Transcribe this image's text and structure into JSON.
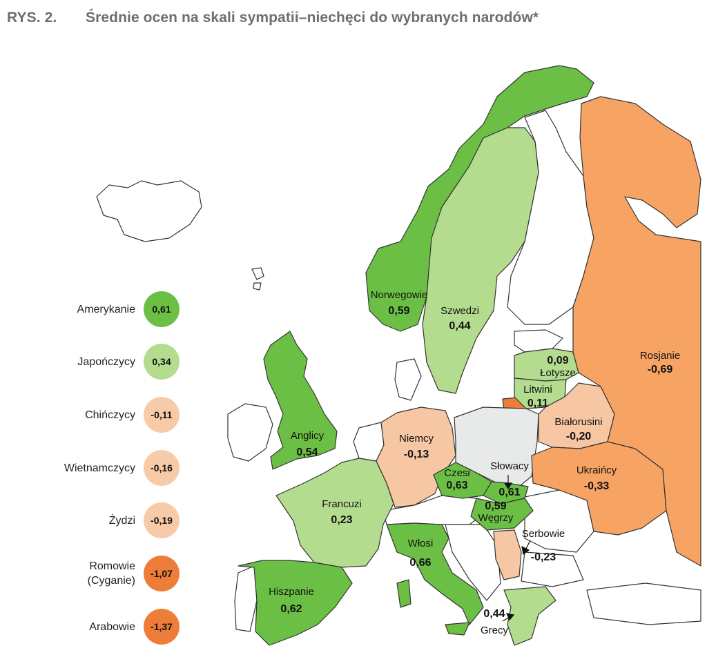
{
  "header": {
    "figure_number": "RYS. 2.",
    "title": "Średnie ocen na skali sympatii–niechęci do wybranych narodów*"
  },
  "colors": {
    "strong_green": "#6cbf45",
    "light_green": "#b3dc8f",
    "light_orange": "#f6c7a2",
    "orange": "#f3a261",
    "dark_orange": "#ee7d39",
    "poland_grey": "#e8e9e9",
    "other_land": "#ffffff",
    "border": "#333333"
  },
  "legend": [
    {
      "label": "Amerykanie",
      "value": "0,61",
      "color": "#6cbf45"
    },
    {
      "label": "Japończycy",
      "value": "0,34",
      "color": "#b3dc8f"
    },
    {
      "label": "Chińczycy",
      "value": "-0,11",
      "color": "#f8cba8"
    },
    {
      "label": "Wietnamczycy",
      "value": "-0,16",
      "color": "#f8cba8"
    },
    {
      "label": "Żydzi",
      "value": "-0,19",
      "color": "#f8cba8"
    },
    {
      "label": "Romowie\n(Cyganie)",
      "value": "-1,07",
      "color": "#ee7d39"
    },
    {
      "label": "Arabowie",
      "value": "-1,37",
      "color": "#ee7d39"
    }
  ],
  "countries": {
    "norway": {
      "label": "Norwegowie",
      "value": "0,59",
      "fill": "strong_green"
    },
    "sweden": {
      "label": "Szwedzi",
      "value": "0,44",
      "fill": "light_green"
    },
    "uk": {
      "label": "Anglicy",
      "value": "0,54",
      "fill": "strong_green"
    },
    "germany": {
      "label": "Niemcy",
      "value": "-0,13",
      "fill": "light_orange"
    },
    "france": {
      "label": "Francuzi",
      "value": "0,23",
      "fill": "light_green"
    },
    "spain": {
      "label": "Hiszpanie",
      "value": "0,62",
      "fill": "strong_green"
    },
    "italy": {
      "label": "Włosi",
      "value": "0,66",
      "fill": "strong_green"
    },
    "czechia": {
      "label": "Czesi",
      "value": "0,63",
      "fill": "strong_green"
    },
    "slovakia": {
      "label": "Słowacy",
      "value": "0,61",
      "fill": "strong_green"
    },
    "hungary": {
      "label": "Węgrzy",
      "value": "0,59",
      "fill": "strong_green"
    },
    "serbia": {
      "label": "Serbowie",
      "value": "-0,23",
      "fill": "light_orange"
    },
    "greece": {
      "label": "Grecy",
      "value": "0,44",
      "fill": "light_green"
    },
    "latvia": {
      "label": "Łotysze",
      "value": "0,09",
      "fill": "light_green"
    },
    "lithuania": {
      "label": "Litwini",
      "value": "0,11",
      "fill": "light_green"
    },
    "belarus": {
      "label": "Białorusini",
      "value": "-0,20",
      "fill": "light_orange"
    },
    "ukraine": {
      "label": "Ukraińcy",
      "value": "-0,33",
      "fill": "orange"
    },
    "russia": {
      "label": "Rosjanie",
      "value": "-0,69",
      "fill": "orange"
    }
  }
}
